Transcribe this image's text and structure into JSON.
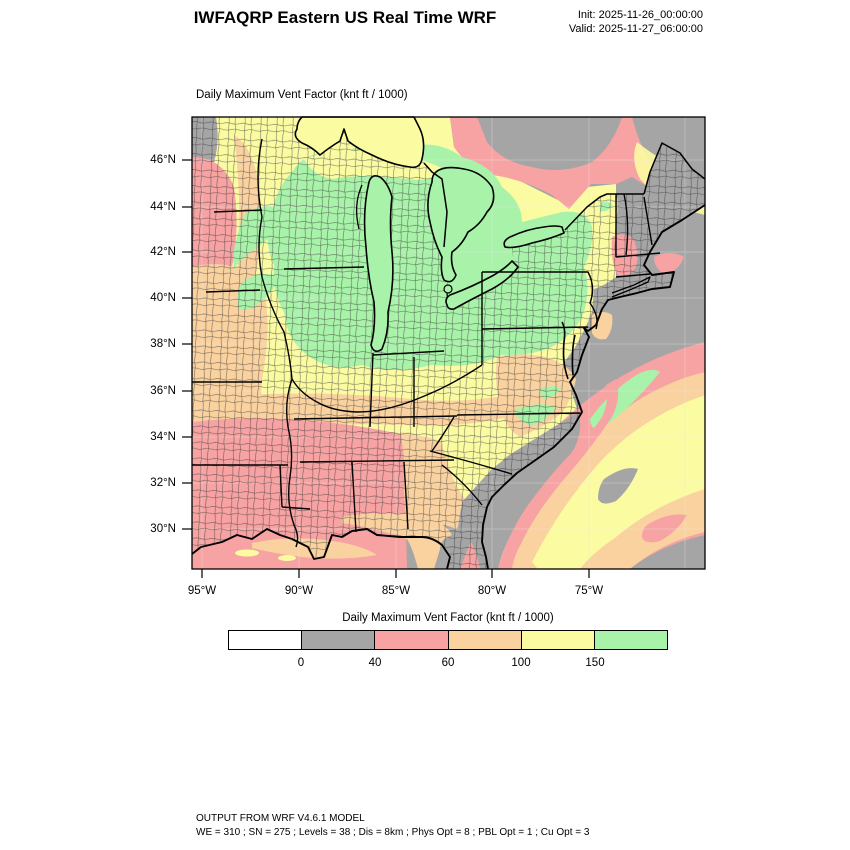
{
  "header": {
    "title": "IWFAQRP Eastern US Real Time WRF",
    "init_label": "Init: 2025-11-26_00:00:00",
    "valid_label": "Valid: 2025-11-27_06:00:00"
  },
  "map": {
    "subtitle": "Daily Maximum Vent Factor   (knt ft / 1000)",
    "lat_ticks": [
      "46°N",
      "44°N",
      "42°N",
      "40°N",
      "38°N",
      "36°N",
      "34°N",
      "32°N",
      "30°N"
    ],
    "lon_ticks": [
      "95°W",
      "90°W",
      "85°W",
      "80°W",
      "75°W"
    ]
  },
  "legend": {
    "title": "Daily Maximum Vent Factor  (knt ft / 1000)",
    "tick_labels": [
      "0",
      "40",
      "60",
      "100",
      "150"
    ],
    "bins": [
      {
        "label": "below 0",
        "color": "#ffffff"
      },
      {
        "label": "0-40",
        "color": "#a5a5a5"
      },
      {
        "label": "40-60",
        "color": "#f7a3a3"
      },
      {
        "label": "60-100",
        "color": "#fad2a0"
      },
      {
        "label": "100-150",
        "color": "#fbfba2"
      },
      {
        "label": "above 150",
        "color": "#a9f2a9"
      }
    ]
  },
  "palette": {
    "white": "#ffffff",
    "gray": "#a5a5a5",
    "pink": "#f7a3a3",
    "orange": "#fad2a0",
    "yellow": "#fbfba2",
    "green": "#a9f2a9"
  },
  "footer": {
    "line1": "OUTPUT FROM WRF V4.6.1 MODEL",
    "line2": "WE = 310 ; SN = 275 ; Levels = 38 ; Dis = 8km ; Phys Opt = 8 ; PBL Opt = 1 ; Cu Opt = 3"
  }
}
